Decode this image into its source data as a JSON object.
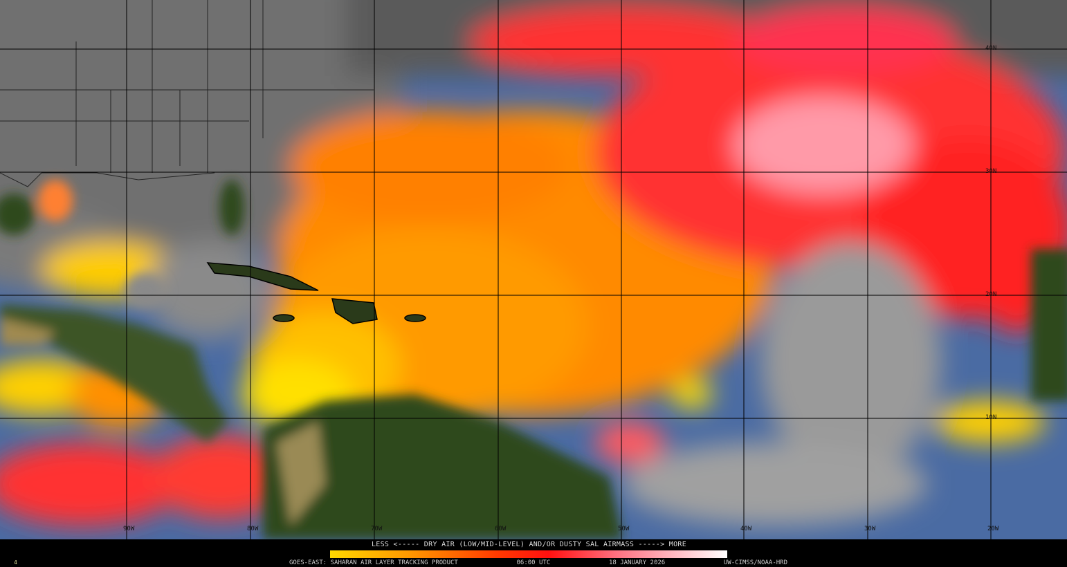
{
  "product": {
    "legend_title": "LESS <----- DRY AIR (LOW/MID-LEVEL) AND/OR DUSTY SAL AIRMASS -----> MORE",
    "legend_colors": [
      "#ffd700",
      "#ff9800",
      "#ff3a00",
      "#ff1010",
      "#ff7080",
      "#ffc0c8",
      "#ffffff"
    ],
    "satellite": "GOES-EAST:",
    "name": "SAHARAN AIR LAYER TRACKING PRODUCT",
    "time": "06:00 UTC",
    "date": "18 JANUARY 2026",
    "credit": "UW-CIMSS/NOAA-HRD",
    "frame": "4"
  },
  "grid": {
    "longitudes": [
      "90W",
      "80W",
      "70W",
      "60W",
      "50W",
      "40W",
      "30W",
      "20W"
    ],
    "latitudes": [
      "40N",
      "30N",
      "20N",
      "10N"
    ]
  }
}
